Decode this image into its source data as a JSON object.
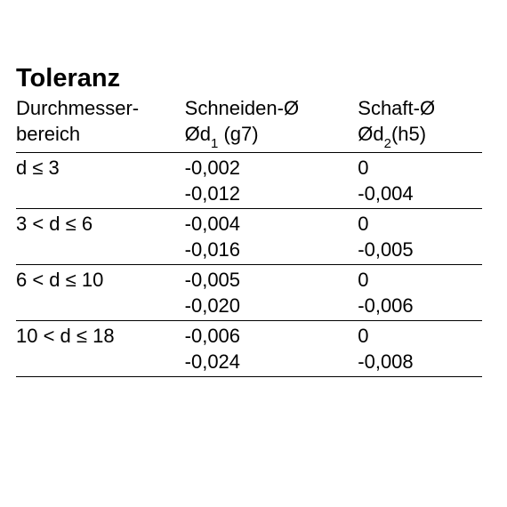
{
  "title": "Toleranz",
  "table": {
    "background_color": "#ffffff",
    "text_color": "#000000",
    "border_color": "#000000",
    "title_fontsize": 29,
    "body_fontsize": 22,
    "columns": [
      {
        "line1": "Durchmesser-",
        "line2": "bereich"
      },
      {
        "line1": "Schneiden-Ø",
        "line2_pre": "Ød",
        "line2_sub": "1",
        "line2_post": "  (g7)"
      },
      {
        "line1": "Schaft-Ø",
        "line2_pre": "Ød",
        "line2_sub": "2",
        "line2_post": "(h5)"
      }
    ],
    "rows": [
      {
        "range": "d ≤ 3",
        "s1": "-0,002",
        "s2": "-0,012",
        "h1": " 0",
        "h2": "-0,004"
      },
      {
        "range": "3 < d ≤ 6",
        "s1": "-0,004",
        "s2": "-0,016",
        "h1": " 0",
        "h2": "-0,005"
      },
      {
        "range": "6 < d ≤ 10",
        "s1": "-0,005",
        "s2": "-0,020",
        "h1": " 0",
        "h2": "-0,006"
      },
      {
        "range": "10 < d ≤ 18",
        "s1": "-0,006",
        "s2": "-0,024",
        "h1": " 0",
        "h2": "-0,008"
      }
    ]
  }
}
